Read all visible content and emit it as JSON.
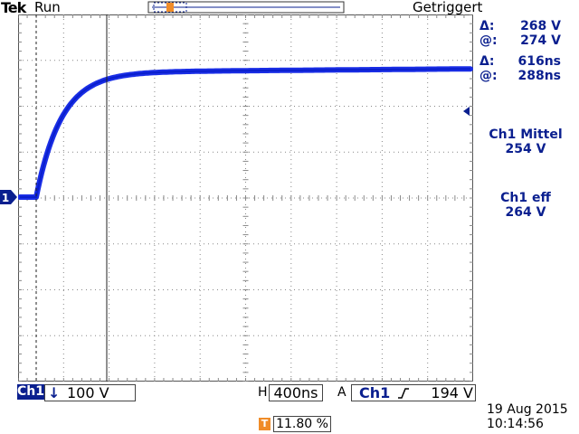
{
  "header": {
    "brand": "Tek",
    "acq_state": "Run",
    "trigger_status": "Getriggert"
  },
  "measurements": {
    "voltage_cursor": {
      "delta_label": "Δ:",
      "delta_value": "268 V",
      "at_label": "@:",
      "at_value": "274 V"
    },
    "time_cursor": {
      "delta_label": "Δ:",
      "delta_value": "616ns",
      "at_label": "@:",
      "at_value": "288ns"
    },
    "mean": {
      "name": "Ch1 Mittel",
      "value": "254 V"
    },
    "rms": {
      "name": "Ch1 eff",
      "value": "264 V"
    }
  },
  "channel": {
    "ground_marker": "1",
    "badge": "Ch1",
    "coupling_icon": "dc-coupling-arrow-icon",
    "scale": "100 V"
  },
  "timebase": {
    "label": "H",
    "value": "400ns"
  },
  "trigger": {
    "mode_label": "A",
    "source": "Ch1",
    "slope_icon": "rising-edge-icon",
    "level": "194 V",
    "position_icon": "T",
    "position": "11.80 %"
  },
  "datetime": {
    "date": "19 Aug 2015",
    "time": "10:14:56"
  },
  "colors": {
    "trace": "#1a2ee6",
    "accent": "#0a1f8f",
    "trigger_marker": "#f08c28"
  }
}
